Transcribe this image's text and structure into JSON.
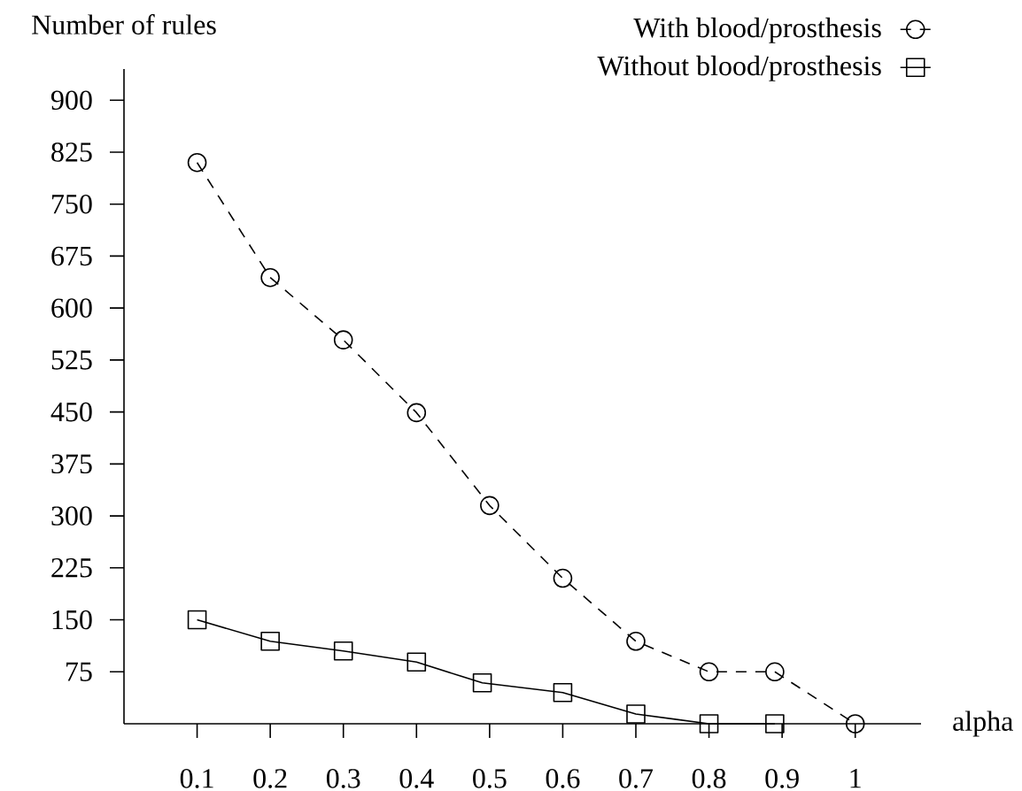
{
  "chart_data": {
    "type": "line",
    "xlabel": "alpha",
    "ylabel": "Number of rules",
    "xlim": [
      0,
      1.09
    ],
    "ylim": [
      0,
      945
    ],
    "xticks": [
      0.1,
      0.2,
      0.3,
      0.4,
      0.5,
      0.6,
      0.7,
      0.8,
      0.9,
      1
    ],
    "yticks": [
      75,
      150,
      225,
      300,
      375,
      450,
      525,
      600,
      675,
      750,
      825,
      900
    ],
    "legend": "top right",
    "series": [
      {
        "name": "With blood/prosthesis",
        "color": "#000000",
        "line_style": "dashed",
        "marker": "circle",
        "x": [
          0.1,
          0.2,
          0.3,
          0.4,
          0.5,
          0.6,
          0.7,
          0.8,
          0.89,
          1
        ],
        "values": [
          810,
          644,
          554,
          449,
          315,
          210,
          119,
          75,
          75,
          0
        ]
      },
      {
        "name": "Without blood/prosthesis",
        "color": "#000000",
        "line_style": "solid",
        "marker": "square",
        "x": [
          0.1,
          0.2,
          0.3,
          0.4,
          0.49,
          0.6,
          0.7,
          0.8,
          0.89
        ],
        "values": [
          150,
          119,
          105,
          89,
          59,
          45,
          14,
          0,
          0
        ]
      }
    ]
  }
}
